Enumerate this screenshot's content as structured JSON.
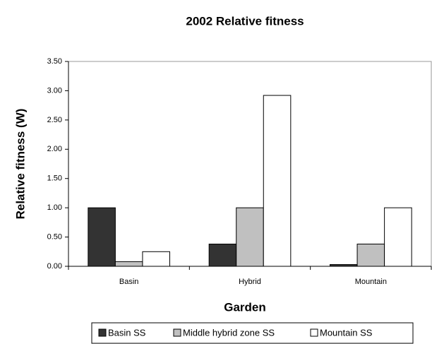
{
  "chart_data": {
    "type": "bar",
    "title": "2002 Relative fitness",
    "xlabel": "Garden",
    "ylabel": "Relative fitness (W)",
    "categories": [
      "Basin",
      "Hybrid",
      "Mountain"
    ],
    "series": [
      {
        "name": "Basin SS",
        "color": "#333333",
        "values": [
          1.0,
          0.38,
          0.03
        ]
      },
      {
        "name": "Middle hybrid zone SS",
        "color": "#c0c0c0",
        "values": [
          0.08,
          1.0,
          0.38
        ]
      },
      {
        "name": "Mountain SS",
        "color": "#ffffff",
        "values": [
          0.25,
          2.92,
          1.0
        ]
      }
    ],
    "ylim": [
      0,
      3.5
    ],
    "yticks": [
      {
        "value": 0,
        "label": "0.00"
      },
      {
        "value": 0.5,
        "label": "0.50"
      },
      {
        "value": 1,
        "label": "1.00"
      },
      {
        "value": 1.5,
        "label": "1.50"
      },
      {
        "value": 2,
        "label": "2.00"
      },
      {
        "value": 2.5,
        "label": "2.50"
      },
      {
        "value": 3,
        "label": "3.00"
      },
      {
        "value": 3.5,
        "label": "3.50"
      }
    ],
    "legend": "bottom"
  }
}
